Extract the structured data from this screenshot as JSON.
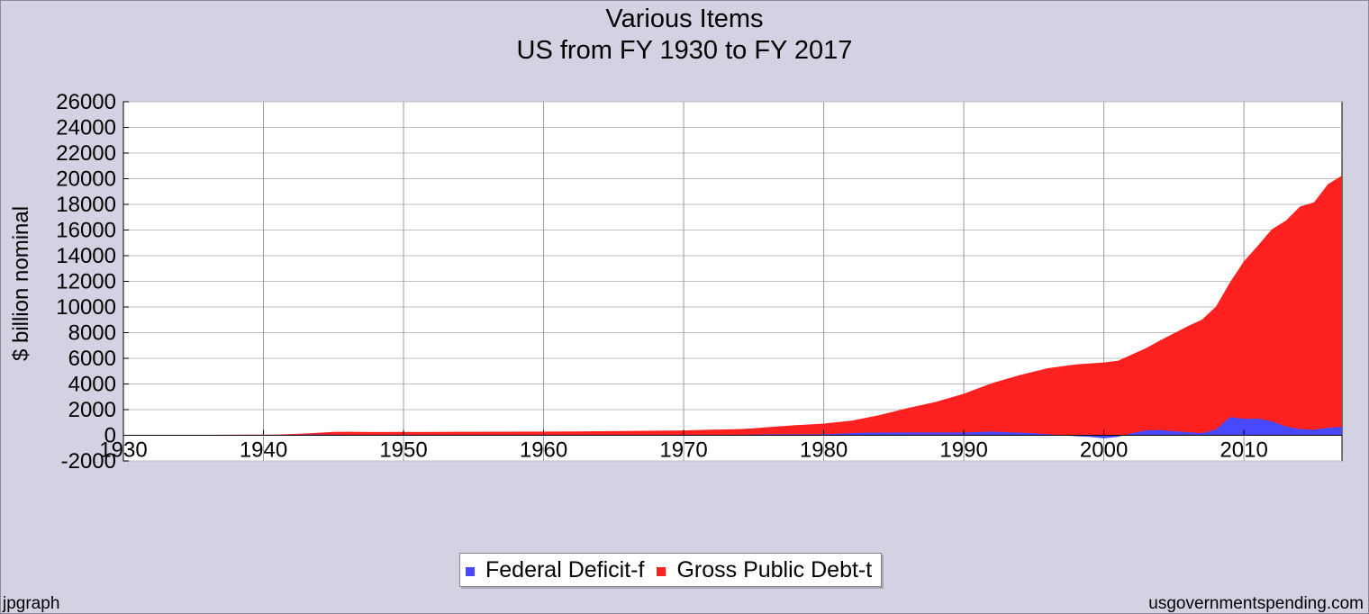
{
  "chart_data": {
    "type": "area",
    "title": "Various Items",
    "subtitle": "US from FY 1930 to FY 2017",
    "ylabel": "$ billion nominal",
    "xlabel": "",
    "xlim": [
      1930,
      2017
    ],
    "ylim": [
      -2000,
      26000
    ],
    "x_ticks": [
      1930,
      1940,
      1950,
      1960,
      1970,
      1980,
      1990,
      2000,
      2010
    ],
    "y_ticks": [
      -2000,
      0,
      2000,
      4000,
      6000,
      8000,
      10000,
      12000,
      14000,
      16000,
      18000,
      20000,
      22000,
      24000,
      26000
    ],
    "grid": true,
    "legend_position": "bottom-center",
    "series": [
      {
        "name": "Gross Public Debt-t",
        "color": "#ff2020",
        "x": [
          1930,
          1935,
          1939,
          1941,
          1943,
          1945,
          1946,
          1948,
          1950,
          1951,
          1955,
          1960,
          1965,
          1970,
          1972,
          1974,
          1975,
          1976,
          1978,
          1980,
          1982,
          1984,
          1986,
          1988,
          1990,
          1992,
          1994,
          1996,
          1998,
          2000,
          2001,
          2003,
          2004,
          2006,
          2007,
          2008,
          2009,
          2010,
          2011,
          2012,
          2013,
          2014,
          2015,
          2016,
          2017
        ],
        "values": [
          16,
          29,
          48,
          58,
          143,
          260,
          271,
          252,
          257,
          255,
          274,
          291,
          322,
          381,
          436,
          484,
          543,
          629,
          789,
          909,
          1142,
          1577,
          2121,
          2601,
          3233,
          4065,
          4693,
          5225,
          5526,
          5674,
          5807,
          6783,
          7379,
          8507,
          9008,
          10025,
          11910,
          13562,
          14790,
          16066,
          16738,
          17824,
          18151,
          19573,
          20245
        ]
      },
      {
        "name": "Federal Deficit-f",
        "color": "#4848ff",
        "x": [
          1930,
          1931,
          1932,
          1936,
          1940,
          1941,
          1942,
          1943,
          1944,
          1945,
          1946,
          1947,
          1950,
          1955,
          1960,
          1968,
          1970,
          1975,
          1976,
          1980,
          1983,
          1986,
          1990,
          1992,
          1995,
          1998,
          1999,
          2000,
          2001,
          2002,
          2003,
          2004,
          2005,
          2006,
          2007,
          2008,
          2009,
          2010,
          2011,
          2012,
          2013,
          2014,
          2015,
          2016,
          2017
        ],
        "values": [
          0,
          0,
          3,
          4,
          3,
          5,
          21,
          55,
          48,
          48,
          16,
          -4,
          3,
          3,
          0,
          25,
          3,
          53,
          74,
          74,
          208,
          221,
          221,
          290,
          164,
          -69,
          -126,
          -236,
          -128,
          158,
          378,
          413,
          318,
          248,
          161,
          459,
          1413,
          1294,
          1300,
          1087,
          680,
          485,
          442,
          585,
          665
        ]
      }
    ]
  },
  "footer": {
    "left": "jpgraph",
    "right": "usgovernmentspending.com"
  }
}
